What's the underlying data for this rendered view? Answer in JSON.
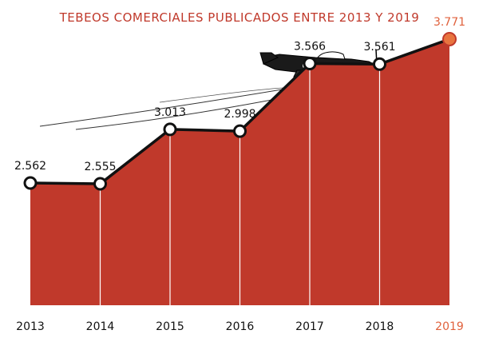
{
  "chart_data": {
    "type": "area",
    "title": "TEBEOS  COMERCIALES PUBLICADOS ENTRE 2013 Y 2019",
    "categories": [
      "2013",
      "2014",
      "2015",
      "2016",
      "2017",
      "2018",
      "2019"
    ],
    "values": [
      2562,
      2555,
      3013,
      2998,
      3566,
      3561,
      3771
    ],
    "value_labels": [
      "2.562",
      "2.555",
      "3.013",
      "2.998",
      "3.566",
      "3.561",
      "3.771"
    ],
    "highlight_index": 6,
    "ylim": [
      0,
      4000
    ],
    "grid": false,
    "legend": "none"
  },
  "colors": {
    "area_fill": "#c0392b",
    "highlight": "#e0613c",
    "highlight_point": "#e8743f",
    "line": "#111111"
  },
  "decoration": {
    "airplane_icon": "fighter-plane-icon"
  }
}
